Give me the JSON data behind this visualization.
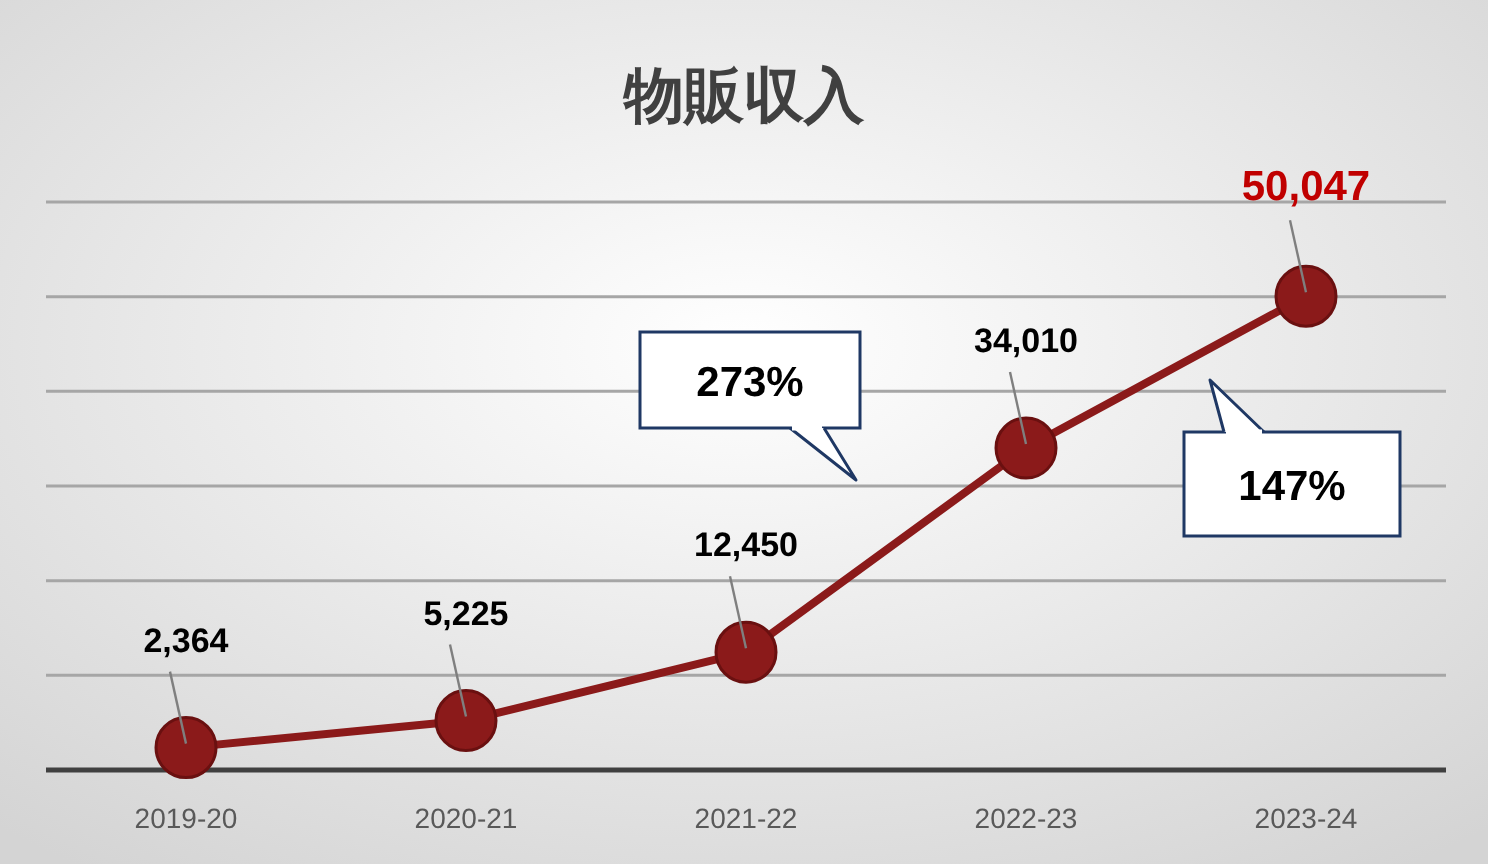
{
  "chart_data": {
    "type": "line",
    "title": "物販収入",
    "categories": [
      "2019-20",
      "2020-21",
      "2021-22",
      "2022-23",
      "2023-24"
    ],
    "series": [
      {
        "color": "#8b1a1a",
        "values": [
          2364,
          5225,
          12450,
          34010,
          50047
        ],
        "value_labels": [
          "2,364",
          "5,225",
          "12,450",
          "34,010",
          "50,047"
        ]
      }
    ],
    "ylim": [
      0,
      60000
    ],
    "yticks": [
      {
        "value": 0,
        "label": null
      },
      {
        "value": 10000,
        "label": null
      },
      {
        "value": 20000,
        "label": null
      },
      {
        "value": 30000,
        "label": null
      },
      {
        "value": 40000,
        "label": null
      },
      {
        "value": 50000,
        "label": null
      },
      {
        "value": 60000,
        "label": null
      }
    ],
    "grid": "y",
    "marker": "circle",
    "tick_labels": "x",
    "annotations": [
      "273%",
      "147%"
    ]
  }
}
